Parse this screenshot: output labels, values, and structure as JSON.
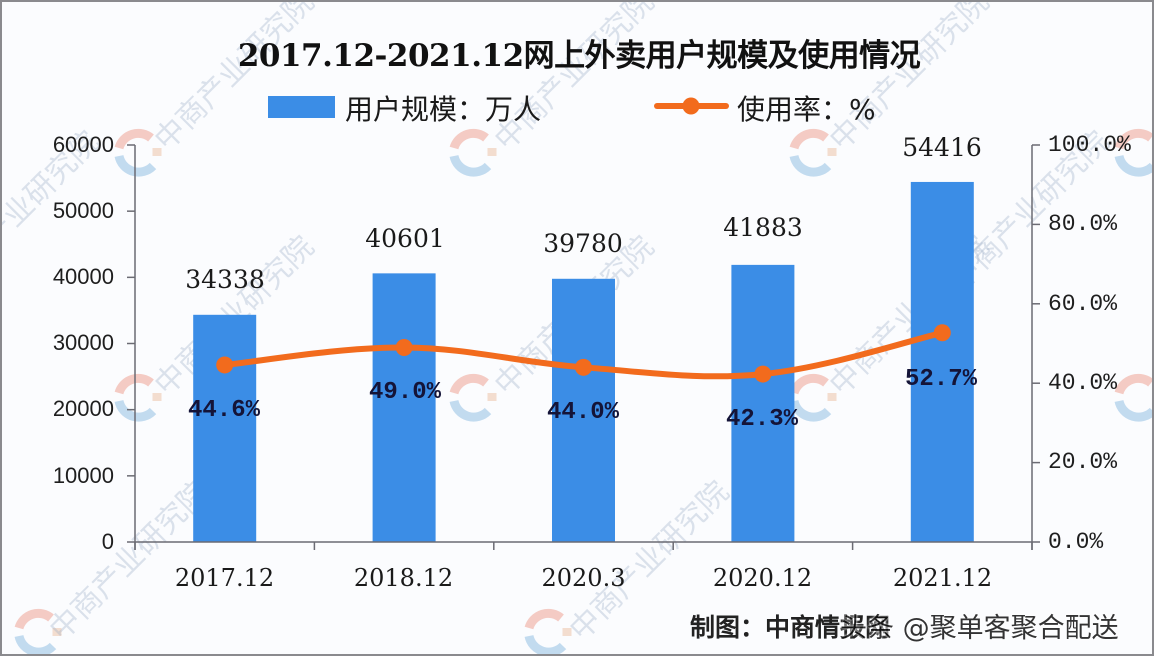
{
  "chart_data": {
    "type": "bar",
    "title": "2017.12-2021.12网上外卖用户规模及使用情况",
    "categories": [
      "2017.12",
      "2018.12",
      "2020.3",
      "2020.12",
      "2021.12"
    ],
    "series": [
      {
        "name": "用户规模：万人",
        "type": "bar",
        "axis": "left",
        "color": "#3b8de6",
        "values": [
          34338,
          40601,
          39780,
          41883,
          54416
        ],
        "labels": [
          "34338",
          "40601",
          "39780",
          "41883",
          "54416"
        ]
      },
      {
        "name": "使用率：%",
        "type": "line",
        "axis": "right",
        "color": "#f26b1d",
        "values": [
          44.6,
          49.0,
          44.0,
          42.3,
          52.7
        ],
        "labels": [
          "44.6%",
          "49.0%",
          "44.0%",
          "42.3%",
          "52.7%"
        ]
      }
    ],
    "xlabel": "",
    "ylabel": "",
    "ylim": [
      0,
      60000
    ],
    "y2lim": [
      0,
      100
    ],
    "yticks": [
      "60000",
      "50000",
      "40000",
      "30000",
      "20000",
      "10000",
      "0"
    ],
    "y2ticks": [
      "100.0%",
      "80.0%",
      "60.0%",
      "40.0%",
      "20.0%",
      "0.0%"
    ],
    "grid": false,
    "legend_position": "top"
  },
  "legend": {
    "bar_label": "用户规模：万人",
    "line_label": "使用率：%"
  },
  "footer": {
    "source": "制图：中商情报网",
    "overlay": "头条 @聚单客聚合配送"
  },
  "watermark": {
    "text": "中商产业研究院"
  }
}
